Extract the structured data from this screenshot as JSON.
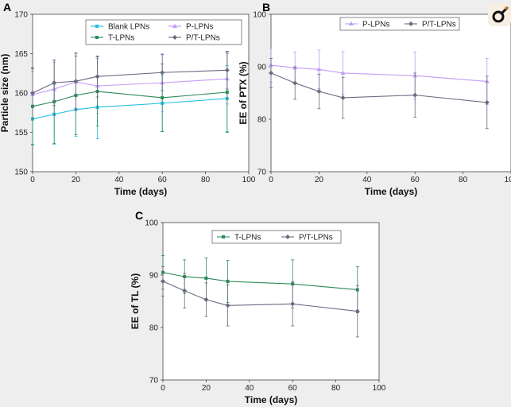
{
  "logo": {
    "icon": "dove-press-logo-icon"
  },
  "chart_data": [
    {
      "panel": "A",
      "type": "line",
      "xlabel": "Time (days)",
      "ylabel": "Particle size (nm)",
      "xlim": [
        0,
        100
      ],
      "ylim": [
        150,
        170
      ],
      "xticks": [
        "0",
        "20",
        "40",
        "60",
        "80",
        "100"
      ],
      "yticks": [
        "150",
        "155",
        "160",
        "165",
        "170"
      ],
      "x": [
        0,
        10,
        20,
        30,
        60,
        90
      ],
      "legend_position": "top-center",
      "legend_columns": 2,
      "series": [
        {
          "name": "Blank LPNs",
          "color": "#1ec0de",
          "marker": "square",
          "values": [
            156.7,
            157.3,
            157.9,
            158.2,
            158.7,
            159.3
          ],
          "error": [
            3.3,
            3.8,
            3.4,
            4.0,
            3.6,
            4.2
          ]
        },
        {
          "name": "P-LPNs",
          "color": "#c29bf5",
          "marker": "triangle",
          "values": [
            159.8,
            160.5,
            161.4,
            160.9,
            161.3,
            161.8
          ],
          "error": [
            3.0,
            3.4,
            3.6,
            3.5,
            3.7,
            3.2
          ]
        },
        {
          "name": "T-LPNs",
          "color": "#2e8a5a",
          "marker": "square",
          "values": [
            158.3,
            158.9,
            159.7,
            160.2,
            159.4,
            160.1
          ],
          "error": [
            4.8,
            5.3,
            5.0,
            4.4,
            4.3,
            5.1
          ]
        },
        {
          "name": "P/T-LPNs",
          "color": "#6a6a80",
          "marker": "diamond",
          "values": [
            160.0,
            161.3,
            161.5,
            162.1,
            162.6,
            162.9
          ],
          "error": [
            3.2,
            2.9,
            3.6,
            2.6,
            2.3,
            2.4
          ]
        }
      ]
    },
    {
      "panel": "B",
      "type": "line",
      "xlabel": "Time (days)",
      "ylabel": "EE of PTX (%)",
      "xlim": [
        0,
        100
      ],
      "ylim": [
        70,
        100
      ],
      "xticks": [
        "0",
        "20",
        "40",
        "60",
        "80",
        "100"
      ],
      "yticks": [
        "70",
        "80",
        "90",
        "100"
      ],
      "x": [
        0,
        10,
        20,
        30,
        60,
        90
      ],
      "legend_position": "top-center",
      "legend_columns": 2,
      "series": [
        {
          "name": "P-LPNs",
          "color": "#c29bf5",
          "marker": "triangle",
          "values": [
            90.3,
            89.8,
            89.5,
            88.8,
            88.3,
            87.2
          ],
          "error": [
            3.2,
            3.0,
            3.7,
            4.1,
            4.5,
            4.4
          ]
        },
        {
          "name": "P/T-LPNs",
          "color": "#6a6a80",
          "marker": "diamond",
          "values": [
            88.8,
            86.9,
            85.3,
            84.1,
            84.6,
            83.2
          ],
          "error": [
            2.8,
            3.1,
            3.3,
            3.9,
            4.2,
            5.0
          ]
        }
      ]
    },
    {
      "panel": "C",
      "type": "line",
      "xlabel": "Time (days)",
      "ylabel": "EE of TL (%)",
      "xlim": [
        0,
        100
      ],
      "ylim": [
        70,
        100
      ],
      "xticks": [
        "0",
        "20",
        "40",
        "60",
        "80",
        "100"
      ],
      "yticks": [
        "70",
        "80",
        "90",
        "100"
      ],
      "x": [
        0,
        10,
        20,
        30,
        60,
        90
      ],
      "legend_position": "top-center",
      "legend_columns": 2,
      "series": [
        {
          "name": "T-LPNs",
          "color": "#2e8a5a",
          "marker": "square",
          "values": [
            90.5,
            89.7,
            89.4,
            88.8,
            88.3,
            87.2
          ],
          "error": [
            3.2,
            3.2,
            3.9,
            4.0,
            4.6,
            4.4
          ]
        },
        {
          "name": "P/T-LPNs",
          "color": "#6a6a80",
          "marker": "diamond",
          "values": [
            88.8,
            87.0,
            85.3,
            84.2,
            84.5,
            83.1
          ],
          "error": [
            2.8,
            3.3,
            3.2,
            3.9,
            4.2,
            4.9
          ]
        }
      ]
    }
  ]
}
